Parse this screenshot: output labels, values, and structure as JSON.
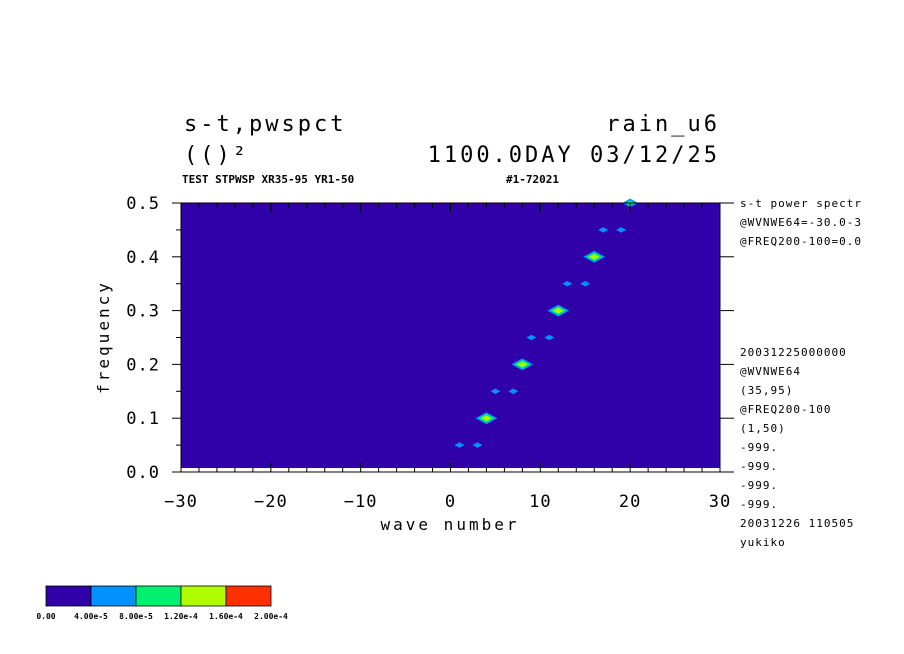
{
  "header": {
    "title_left": "s-t,pwspct",
    "title_right": "rain_u6",
    "units": "(()²",
    "time_info": "1100.0DAY 03/12/25",
    "subtitle_left": "TEST STPWSP XR35-95 YR1-50",
    "subtitle_right": "#1-72021"
  },
  "side_info": {
    "top": [
      "s-t power spectr",
      "@WVNWE64=-30.0-3",
      "@FREQ200-100=0.0"
    ],
    "bottom": [
      "20031225000000",
      "@WVNWE64",
      "(35,95)",
      "@FREQ200-100",
      "(1,50)",
      "-999.",
      "-999.",
      "-999.",
      "-999.",
      "20031226 110505",
      "yukiko"
    ]
  },
  "colorbar": {
    "colors": [
      "#3000a8",
      "#0090ff",
      "#00f070",
      "#b0ff00",
      "#ff3000"
    ],
    "labels": [
      "0.00",
      "4.00e-5",
      "8.00e-5",
      "1.20e-4",
      "1.60e-4",
      "2.00e-4"
    ]
  },
  "chart_data": {
    "type": "heatmap",
    "xlabel": "wave number",
    "ylabel": "frequency",
    "xlim": [
      -30,
      30
    ],
    "ylim": [
      0,
      0.5
    ],
    "x_ticks": [
      -30,
      -20,
      -10,
      0,
      10,
      20,
      30
    ],
    "y_ticks": [
      0.0,
      0.1,
      0.2,
      0.3,
      0.4,
      0.5
    ],
    "x_tick_labels": [
      "−30",
      "−20",
      "−10",
      "0",
      "10",
      "20",
      "30"
    ],
    "y_tick_labels": [
      "0.0",
      "0.1",
      "0.2",
      "0.3",
      "0.4",
      "0.5"
    ],
    "background_color": "#3000a8",
    "peaks": [
      {
        "x": 1,
        "y": 0.05,
        "level": 1
      },
      {
        "x": 3,
        "y": 0.05,
        "level": 1
      },
      {
        "x": 4,
        "y": 0.1,
        "level": 3
      },
      {
        "x": 5,
        "y": 0.15,
        "level": 1
      },
      {
        "x": 7,
        "y": 0.15,
        "level": 1
      },
      {
        "x": 8,
        "y": 0.2,
        "level": 3
      },
      {
        "x": 9,
        "y": 0.25,
        "level": 1
      },
      {
        "x": 11,
        "y": 0.25,
        "level": 1
      },
      {
        "x": 12,
        "y": 0.3,
        "level": 3
      },
      {
        "x": 13,
        "y": 0.35,
        "level": 1
      },
      {
        "x": 15,
        "y": 0.35,
        "level": 1
      },
      {
        "x": 16,
        "y": 0.4,
        "level": 3
      },
      {
        "x": 17,
        "y": 0.45,
        "level": 1
      },
      {
        "x": 19,
        "y": 0.45,
        "level": 1
      },
      {
        "x": 20,
        "y": 0.5,
        "level": 2
      }
    ]
  }
}
